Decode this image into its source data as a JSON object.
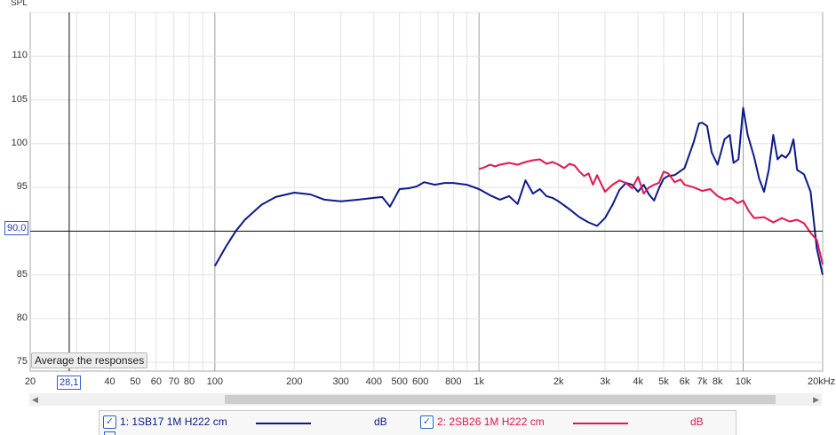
{
  "y_axis_title": "SPL",
  "cursor": {
    "y_value": "90,0",
    "x_value": "28,1"
  },
  "tooltip": "Average the responses",
  "legend": [
    {
      "checked": "✓",
      "label": "1: 1SB17 1M H222 cm",
      "unit": "dB",
      "color": "#0b1a8c"
    },
    {
      "checked": "✓",
      "label": "2: 2SB26 1M H222 cm",
      "unit": "dB",
      "color": "#e8144a"
    }
  ],
  "icons": {
    "scroll_left": "scroll-left-arrow-icon",
    "scroll_right": "scroll-right-arrow-icon",
    "checkbox": "checkbox-checked-icon"
  },
  "chart_data": {
    "type": "line",
    "xscale": "log",
    "xlim": [
      20,
      20000
    ],
    "ylim": [
      74,
      115
    ],
    "ylabel": "SPL",
    "xticks": [
      {
        "v": 20,
        "t": "20"
      },
      {
        "v": 40,
        "t": "40"
      },
      {
        "v": 50,
        "t": "50"
      },
      {
        "v": 60,
        "t": "60"
      },
      {
        "v": 70,
        "t": "70"
      },
      {
        "v": 80,
        "t": "80"
      },
      {
        "v": 100,
        "t": "100"
      },
      {
        "v": 200,
        "t": "200"
      },
      {
        "v": 300,
        "t": "300"
      },
      {
        "v": 400,
        "t": "400"
      },
      {
        "v": 500,
        "t": "500"
      },
      {
        "v": 600,
        "t": "600"
      },
      {
        "v": 800,
        "t": "800"
      },
      {
        "v": 1000,
        "t": "1k"
      },
      {
        "v": 2000,
        "t": "2k"
      },
      {
        "v": 3000,
        "t": "3k"
      },
      {
        "v": 4000,
        "t": "4k"
      },
      {
        "v": 5000,
        "t": "5k"
      },
      {
        "v": 6000,
        "t": "6k"
      },
      {
        "v": 7000,
        "t": "7k"
      },
      {
        "v": 8000,
        "t": "8k"
      },
      {
        "v": 10000,
        "t": "10k"
      },
      {
        "v": 20000,
        "t": "20kHz"
      }
    ],
    "yticks": [
      75,
      80,
      85,
      95,
      100,
      105,
      110
    ],
    "cursor": {
      "x": 28.1,
      "y": 90.0
    },
    "series": [
      {
        "name": "1: 1SB17 1M H222 cm",
        "color": "#0b1a8c",
        "x": [
          100,
          110,
          120,
          130,
          150,
          170,
          200,
          230,
          260,
          300,
          350,
          400,
          430,
          460,
          500,
          540,
          580,
          620,
          680,
          740,
          800,
          900,
          1000,
          1100,
          1200,
          1300,
          1400,
          1500,
          1600,
          1700,
          1800,
          1900,
          2000,
          2200,
          2400,
          2600,
          2800,
          3000,
          3200,
          3400,
          3600,
          3800,
          4000,
          4200,
          4400,
          4600,
          4800,
          5000,
          5200,
          5500,
          6000,
          6500,
          6800,
          7000,
          7300,
          7600,
          8000,
          8500,
          8900,
          9200,
          9600,
          10000,
          10400,
          11000,
          11500,
          12000,
          12500,
          13000,
          13500,
          14000,
          14500,
          15000,
          15500,
          16000,
          17000,
          18000,
          19000,
          20000
        ],
        "y": [
          86,
          88.2,
          90,
          91.3,
          93,
          93.9,
          94.4,
          94.2,
          93.6,
          93.4,
          93.6,
          93.8,
          93.9,
          92.8,
          94.8,
          94.9,
          95.1,
          95.6,
          95.3,
          95.5,
          95.5,
          95.3,
          94.8,
          94.1,
          93.6,
          94,
          93.1,
          95.8,
          94.3,
          94.8,
          94,
          93.8,
          93.4,
          92.5,
          91.6,
          91,
          90.6,
          91.5,
          93,
          94.7,
          95.5,
          95.3,
          94.5,
          95.3,
          94.2,
          93.5,
          94.9,
          96,
          96.3,
          96.4,
          97.2,
          100.2,
          102.3,
          102.4,
          102,
          99,
          97.6,
          100.5,
          101,
          97.8,
          98.2,
          104.1,
          101,
          98.5,
          96,
          94.5,
          97,
          101,
          98.2,
          98.7,
          98.4,
          99,
          100.5,
          97,
          96.5,
          94.5,
          88,
          85
        ]
      },
      {
        "name": "2: 2SB26 1M H222 cm",
        "color": "#e8144a",
        "x": [
          1000,
          1050,
          1100,
          1150,
          1200,
          1300,
          1400,
          1500,
          1600,
          1700,
          1800,
          1900,
          2000,
          2100,
          2200,
          2300,
          2400,
          2500,
          2600,
          2700,
          2800,
          2900,
          3000,
          3200,
          3400,
          3600,
          3800,
          4000,
          4200,
          4400,
          4600,
          4800,
          5000,
          5200,
          5500,
          5800,
          6000,
          6500,
          7000,
          7500,
          8000,
          8500,
          9000,
          9500,
          10000,
          10500,
          11000,
          12000,
          13000,
          14000,
          15000,
          16000,
          17000,
          18000,
          19000,
          20000
        ],
        "y": [
          97.1,
          97.3,
          97.6,
          97.4,
          97.6,
          97.8,
          97.6,
          97.9,
          98.1,
          98.2,
          97.7,
          97.9,
          97.6,
          97.2,
          97.7,
          97.5,
          96.8,
          96.3,
          96.6,
          95.3,
          96.4,
          95.4,
          94.5,
          95.3,
          95.8,
          95.5,
          94.9,
          96.2,
          94.3,
          95,
          95.3,
          95.5,
          96.8,
          96.6,
          95.6,
          95.9,
          95.3,
          95,
          94.6,
          94.8,
          94,
          93.6,
          93.8,
          93.2,
          93.5,
          92.3,
          91.5,
          91.6,
          91,
          91.5,
          91.1,
          91.3,
          90.9,
          89.8,
          89,
          86.2
        ]
      }
    ]
  }
}
